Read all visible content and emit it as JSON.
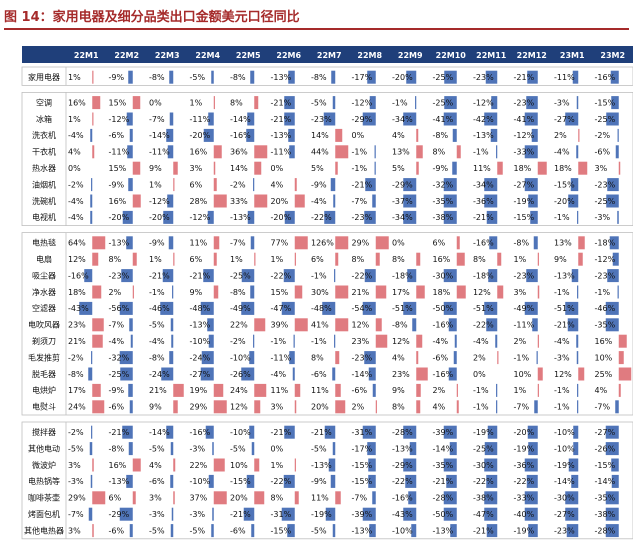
{
  "title": "图 14：家用电器及细分品类出口金额美元口径同比",
  "colors": {
    "header_bg": "#1f3f7a",
    "neg_bar": "#4f74b8",
    "pos_bar": "#e07b80",
    "title": "#a52a2a"
  },
  "chart_data": {
    "type": "table",
    "columns": [
      "22M1",
      "22M2",
      "22M3",
      "22M4",
      "22M5",
      "22M6",
      "22M7",
      "22M8",
      "22M9",
      "22M10",
      "22M11",
      "22M12",
      "23M1",
      "23M2"
    ],
    "groups": [
      {
        "rows": [
          {
            "name": "家用电器",
            "values": [
              1,
              -9,
              -8,
              -5,
              -8,
              -13,
              -8,
              -17,
              -20,
              -25,
              -23,
              -21,
              -11,
              -16
            ]
          }
        ]
      },
      {
        "rows": [
          {
            "name": "空调",
            "values": [
              16,
              15,
              0,
              1,
              8,
              -21,
              -5,
              -12,
              -1,
              -25,
              -12,
              -23,
              -3,
              -15
            ]
          },
          {
            "name": "冰箱",
            "values": [
              1,
              -12,
              -7,
              -11,
              -14,
              -21,
              -23,
              -29,
              -34,
              -41,
              -42,
              -41,
              -27,
              -25
            ]
          },
          {
            "name": "洗衣机",
            "values": [
              -4,
              -6,
              -14,
              -20,
              -16,
              -13,
              14,
              0,
              4,
              -8,
              -13,
              -12,
              2,
              -2
            ]
          },
          {
            "name": "干衣机",
            "values": [
              4,
              -11,
              -11,
              16,
              36,
              -11,
              44,
              -1,
              13,
              8,
              -1,
              -33,
              -4,
              -6
            ]
          },
          {
            "name": "热水器",
            "values": [
              0,
              15,
              9,
              3,
              14,
              0,
              5,
              -1,
              5,
              -9,
              11,
              18,
              18,
              3
            ]
          },
          {
            "name": "油烟机",
            "values": [
              -2,
              -9,
              1,
              6,
              -2,
              4,
              -9,
              -21,
              -29,
              -32,
              -34,
              -27,
              -15,
              -23
            ]
          },
          {
            "name": "洗碗机",
            "values": [
              -4,
              16,
              -12,
              28,
              33,
              20,
              -4,
              -7,
              -37,
              -35,
              -36,
              -19,
              -20,
              -25
            ]
          },
          {
            "name": "电视机",
            "values": [
              -4,
              -20,
              -20,
              -12,
              -13,
              -20,
              -22,
              -23,
              -34,
              -38,
              -21,
              -15,
              -1,
              -3
            ]
          }
        ]
      },
      {
        "rows": [
          {
            "name": "电热毯",
            "values": [
              64,
              -13,
              -9,
              11,
              -7,
              77,
              126,
              29,
              0,
              6,
              -16,
              -8,
              13,
              -18
            ]
          },
          {
            "name": "电扇",
            "values": [
              12,
              8,
              1,
              6,
              1,
              1,
              6,
              8,
              8,
              16,
              8,
              1,
              9,
              -12
            ]
          },
          {
            "name": "吸尘器",
            "values": [
              -16,
              -23,
              -21,
              -21,
              -25,
              -22,
              -1,
              -22,
              -18,
              -30,
              -18,
              -23,
              -13,
              -23
            ]
          },
          {
            "name": "净水器",
            "values": [
              18,
              2,
              -1,
              9,
              -8,
              15,
              30,
              21,
              17,
              18,
              12,
              3,
              -1,
              -1
            ]
          },
          {
            "name": "空滤器",
            "values": [
              -43,
              -56,
              -46,
              -48,
              -49,
              -47,
              -48,
              -54,
              -51,
              -50,
              -51,
              -49,
              -51,
              -46
            ]
          },
          {
            "name": "电吹风器",
            "values": [
              23,
              -7,
              -5,
              -13,
              22,
              39,
              41,
              12,
              -8,
              -16,
              -22,
              -11,
              -21,
              -35
            ]
          },
          {
            "name": "剃须刀",
            "values": [
              21,
              -4,
              -4,
              -10,
              -2,
              -1,
              -1,
              23,
              12,
              -4,
              -4,
              2,
              -4,
              16
            ]
          },
          {
            "name": "毛发推剪",
            "values": [
              -2,
              -32,
              -8,
              -24,
              -10,
              -11,
              8,
              -23,
              4,
              -6,
              2,
              -1,
              -3,
              10
            ]
          },
          {
            "name": "脱毛器",
            "values": [
              -8,
              -25,
              -24,
              -27,
              -26,
              -4,
              -6,
              -14,
              23,
              -16,
              0,
              10,
              12,
              25
            ]
          },
          {
            "name": "电烘炉",
            "values": [
              17,
              -9,
              21,
              19,
              24,
              11,
              11,
              -6,
              9,
              2,
              -1,
              1,
              -1,
              4
            ]
          },
          {
            "name": "电熨斗",
            "values": [
              24,
              -6,
              9,
              29,
              12,
              3,
              20,
              2,
              8,
              4,
              -1,
              -7,
              -1,
              -7
            ]
          }
        ]
      },
      {
        "rows": [
          {
            "name": "搅拌器",
            "values": [
              -2,
              -21,
              -14,
              -16,
              -10,
              -21,
              -21,
              -31,
              -28,
              -39,
              -19,
              -20,
              -10,
              -27
            ]
          },
          {
            "name": "其他电动",
            "values": [
              -5,
              -8,
              -5,
              -3,
              -5,
              0,
              -5,
              -17,
              -13,
              -14,
              -25,
              -19,
              -10,
              -26
            ]
          },
          {
            "name": "微波炉",
            "values": [
              3,
              16,
              4,
              22,
              10,
              1,
              -13,
              -15,
              -29,
              -35,
              -30,
              -36,
              -19,
              -15
            ]
          },
          {
            "name": "电热锅等",
            "values": [
              -3,
              -13,
              -6,
              -10,
              -15,
              -22,
              -9,
              -15,
              -22,
              -21,
              -22,
              -22,
              -14,
              -14
            ]
          },
          {
            "name": "咖啡茶壶",
            "values": [
              29,
              6,
              3,
              37,
              20,
              8,
              11,
              -7,
              -16,
              -28,
              -38,
              -33,
              -30,
              -35
            ]
          },
          {
            "name": "烤面包机",
            "values": [
              -7,
              -29,
              -3,
              -3,
              -21,
              -31,
              -19,
              -39,
              -43,
              -50,
              -47,
              -40,
              -27,
              -38
            ]
          },
          {
            "name": "其他电热器",
            "values": [
              3,
              -6,
              -5,
              -5,
              -6,
              -15,
              -5,
              -13,
              -10,
              -13,
              -21,
              -19,
              -23,
              -28
            ]
          }
        ]
      }
    ]
  }
}
